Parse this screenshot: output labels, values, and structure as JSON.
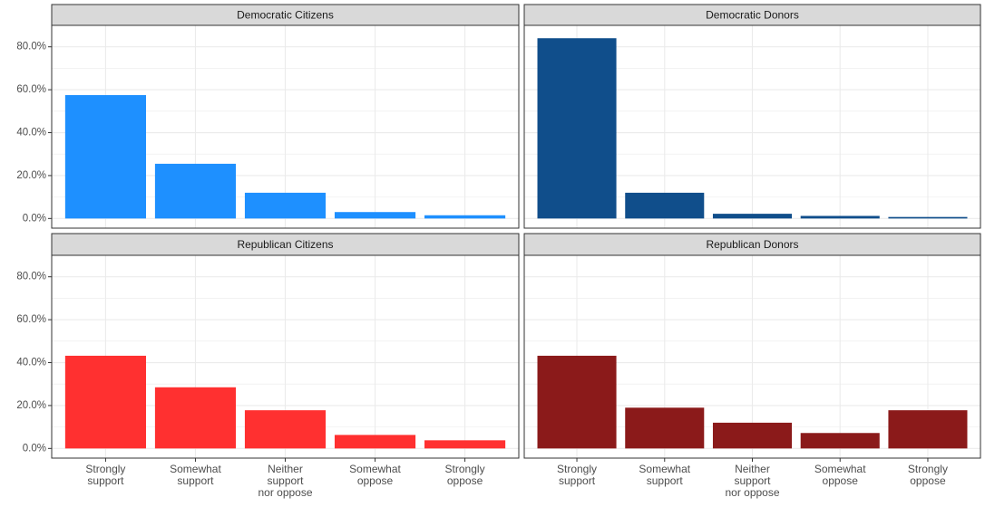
{
  "chart_data": {
    "type": "bar",
    "categories": [
      "Strongly support",
      "Somewhat support",
      "Neither support nor oppose",
      "Somewhat oppose",
      "Strongly oppose"
    ],
    "ylim": [
      -4.5,
      90
    ],
    "yticks": [
      {
        "value": 0,
        "label": "0.0%"
      },
      {
        "value": 20,
        "label": "20.0%"
      },
      {
        "value": 40,
        "label": "40.0%"
      },
      {
        "value": 60,
        "label": "60.0%"
      },
      {
        "value": 80,
        "label": "80.0%"
      }
    ],
    "minor_yticks": [
      10,
      30,
      50,
      70
    ],
    "grid": true,
    "facets": [
      {
        "title": "Democratic Citizens",
        "color": "#1e90ff",
        "values": [
          57.5,
          25.5,
          12,
          3,
          1.5
        ]
      },
      {
        "title": "Democratic Donors",
        "color": "#104e8b",
        "values": [
          84,
          12,
          2.2,
          1.2,
          0.7
        ]
      },
      {
        "title": "Republican Citizens",
        "color": "#ff3030",
        "values": [
          43.2,
          28.5,
          17.8,
          6.3,
          3.8
        ]
      },
      {
        "title": "Republican Donors",
        "color": "#8b1a1a",
        "values": [
          43.2,
          19,
          12,
          7.2,
          17.8
        ]
      }
    ]
  }
}
